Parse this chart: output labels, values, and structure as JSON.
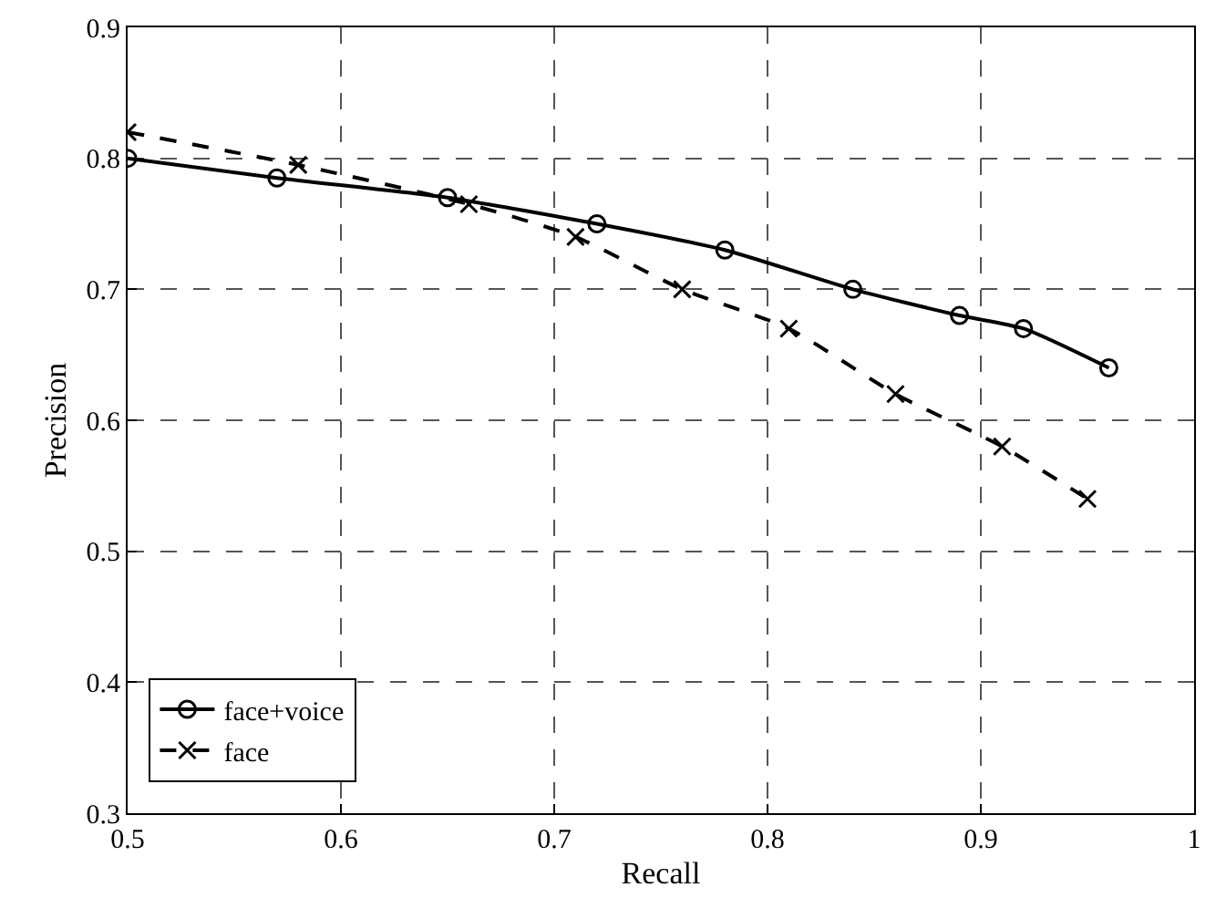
{
  "chart_data": {
    "type": "line",
    "xlabel": "Recall",
    "ylabel": "Precision",
    "xlim": [
      0.5,
      1
    ],
    "xticks": [
      0.5,
      0.6,
      0.7,
      0.8,
      0.9,
      1
    ],
    "ylim": [
      0.3,
      0.9
    ],
    "yticks": [
      0.3,
      0.4,
      0.5,
      0.6,
      0.7,
      0.8,
      0.9
    ],
    "grid": true,
    "legend": "bottom left",
    "series": [
      {
        "name": "face+voice",
        "color": "#000000",
        "marker": "circle",
        "line_style": "solid",
        "x": [
          0.5,
          0.57,
          0.65,
          0.72,
          0.78,
          0.84,
          0.89,
          0.92,
          0.96
        ],
        "values": [
          0.8,
          0.785,
          0.77,
          0.75,
          0.73,
          0.7,
          0.68,
          0.67,
          0.64
        ]
      },
      {
        "name": "face",
        "color": "#000000",
        "marker": "cross",
        "line_style": "dashed",
        "x": [
          0.5,
          0.58,
          0.66,
          0.71,
          0.76,
          0.81,
          0.86,
          0.91,
          0.95
        ],
        "values": [
          0.82,
          0.795,
          0.765,
          0.74,
          0.7,
          0.67,
          0.62,
          0.58,
          0.54
        ]
      }
    ]
  }
}
